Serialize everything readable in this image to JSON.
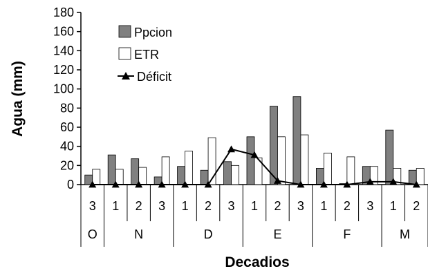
{
  "chart_data": {
    "type": "bar",
    "title": "",
    "xlabel": "Decadios",
    "ylabel": "Agua (mm)",
    "ylim": [
      0,
      180
    ],
    "yticks": [
      0,
      20,
      40,
      60,
      80,
      100,
      120,
      140,
      160,
      180
    ],
    "categories": [
      "3",
      "1",
      "2",
      "3",
      "1",
      "2",
      "3",
      "1",
      "2",
      "3",
      "1",
      "2",
      "3",
      "1",
      "2"
    ],
    "months": [
      {
        "label": "O",
        "count": 1
      },
      {
        "label": "N",
        "count": 3
      },
      {
        "label": "D",
        "count": 3
      },
      {
        "label": "E",
        "count": 3
      },
      {
        "label": "F",
        "count": 3
      },
      {
        "label": "M",
        "count": 2
      }
    ],
    "series": [
      {
        "name": "Ppcion",
        "kind": "bar",
        "color": "#808080",
        "values": [
          10,
          31,
          27,
          8,
          19,
          15,
          24,
          50,
          82,
          92,
          17,
          1,
          19,
          57,
          15
        ]
      },
      {
        "name": "ETR",
        "kind": "bar",
        "color": "#ffffff",
        "values": [
          16,
          16,
          18,
          29,
          35,
          49,
          20,
          28,
          50,
          52,
          33,
          29,
          19,
          17,
          17
        ]
      },
      {
        "name": "Déficit",
        "kind": "line",
        "color": "#000000",
        "values": [
          0,
          0,
          0,
          0,
          0,
          0,
          37,
          31,
          4,
          0,
          0,
          0,
          3,
          3,
          0
        ]
      }
    ],
    "legend_position": "top-left inside",
    "grid": false
  }
}
